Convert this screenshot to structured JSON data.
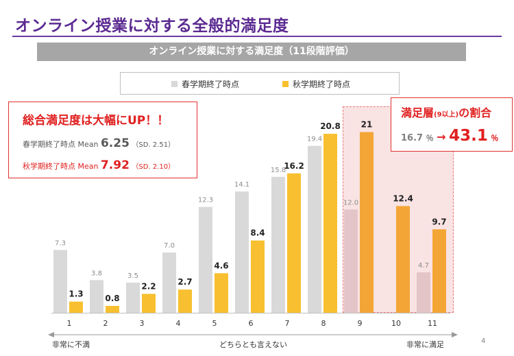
{
  "slide": {
    "title": "オンライン授業に対する全般的満足度",
    "banner": "オンライン授業に対する満足度（11段階評価）",
    "page_number": "4"
  },
  "legend": {
    "spring": "春学期終了時点",
    "fall": "秋学期終了時点"
  },
  "note": {
    "headline": "総合満足度は大幅にUP！！",
    "spring_label": "春学期終了時点 Mean",
    "spring_mean": "6.25",
    "spring_sd": "（SD. 2.51）",
    "fall_label": "秋学期終了時点 Mean",
    "fall_mean": "7.92",
    "fall_sd": "（SD. 2.10）"
  },
  "highlight": {
    "title": "満足層",
    "title_small": "(9以上)",
    "title_suffix": "の割合",
    "before": "16.7",
    "before_unit": "％",
    "arrow": "→",
    "after": "43.1",
    "after_unit": "％",
    "region_color": "#f9e3e3"
  },
  "axis_notes": {
    "left": "非常に不満",
    "middle": "どちらとも言えない",
    "right": "非常に満足"
  },
  "colors": {
    "spring": "#d9d9d9",
    "fall": "#f8c030",
    "spring_highlight": "#e3c5c8",
    "fall_highlight": "#f3a535",
    "accent_red": "#e02020",
    "title_purple": "#5b2a91"
  },
  "chart_data": {
    "type": "bar",
    "categories": [
      "1",
      "2",
      "3",
      "4",
      "5",
      "6",
      "7",
      "8",
      "9",
      "10",
      "11"
    ],
    "series": [
      {
        "name": "春学期終了時点",
        "values": [
          7.3,
          3.8,
          3.5,
          7.0,
          12.3,
          14.1,
          15.8,
          19.4,
          12.0,
          null,
          4.7
        ],
        "labels": [
          "7.3",
          "3.8",
          "3.5",
          "7.0",
          "12.3",
          "14.1",
          "15.8",
          "19.4",
          "12.0",
          "",
          "4.7"
        ]
      },
      {
        "name": "秋学期終了時点",
        "values": [
          1.3,
          0.8,
          2.2,
          2.7,
          4.6,
          8.4,
          16.2,
          20.8,
          21,
          12.4,
          9.7
        ],
        "labels": [
          "1.3",
          "0.8",
          "2.2",
          "2.7",
          "4.6",
          "8.4",
          "16.2",
          "20.8",
          "21",
          "12.4",
          "9.7"
        ]
      }
    ],
    "highlight_categories": [
      "9",
      "10",
      "11"
    ],
    "ylim": [
      0,
      22
    ],
    "xlabel": "",
    "ylabel": "",
    "legend": "top",
    "grid": false
  }
}
